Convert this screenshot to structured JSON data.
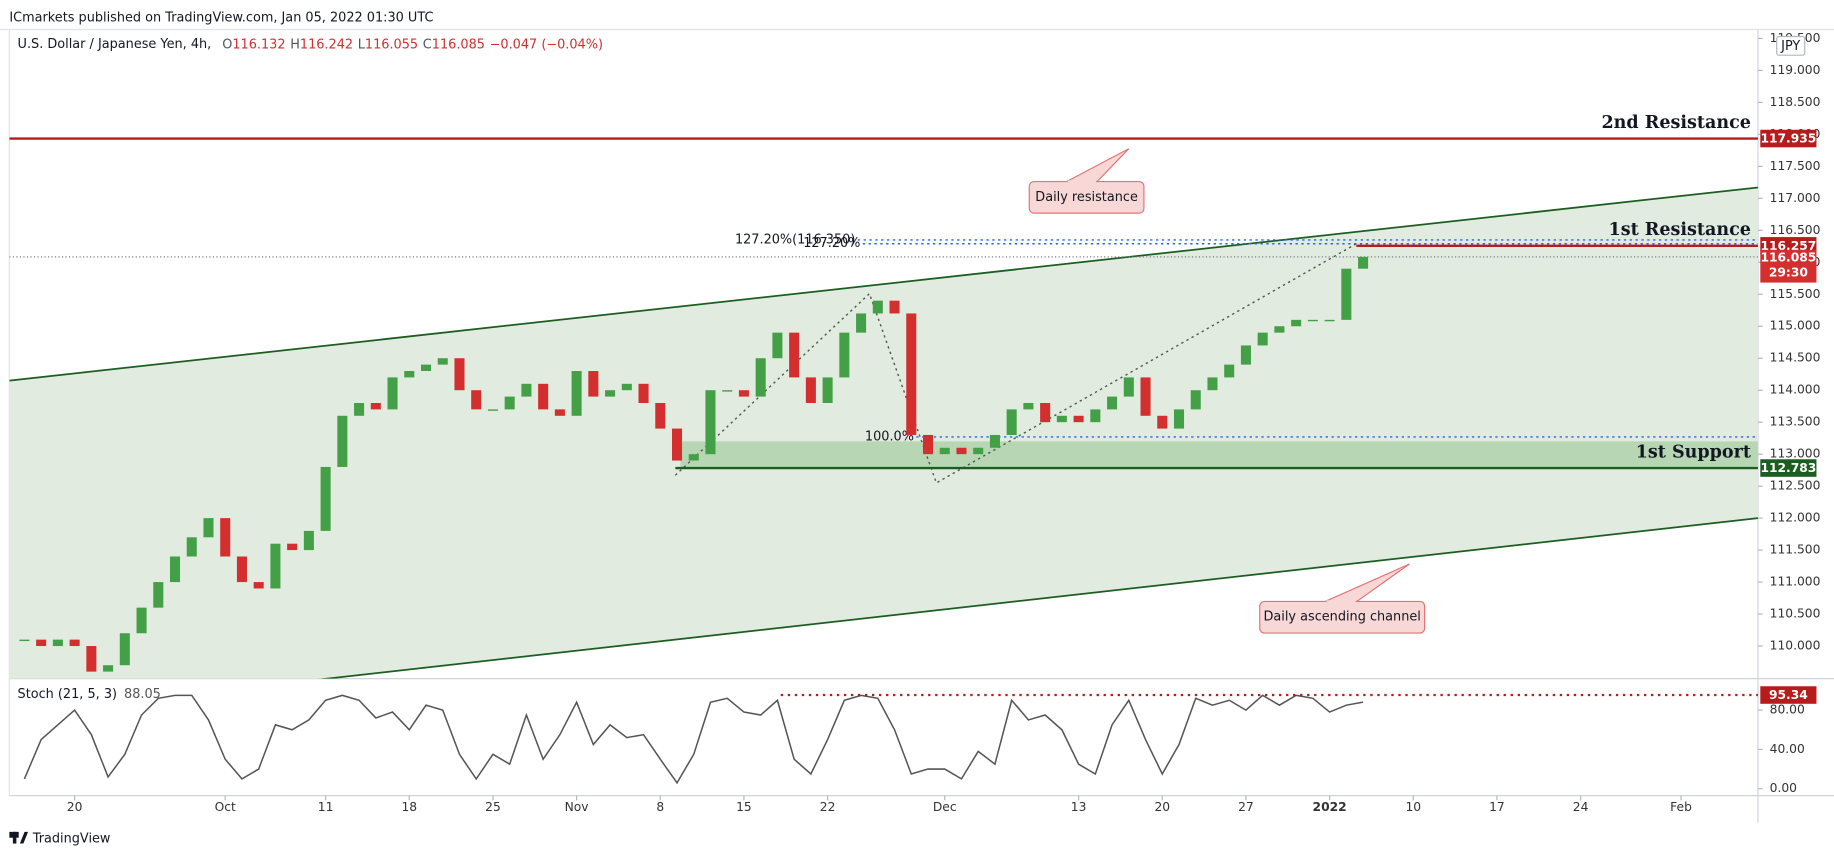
{
  "header": {
    "published": "ICmarkets published on TradingView.com, Jan 05, 2022 01:30 UTC"
  },
  "footer": {
    "brand": "TradingView"
  },
  "currency": "JPY",
  "annotations": [
    "Daily resistance",
    "Daily ascending channel"
  ],
  "chart_data": [
    {
      "type": "candlestick",
      "title": "U.S. Dollar / Japanese Yen, 4h,",
      "legend": {
        "labels": [
          "O",
          "H",
          "L",
          "C"
        ],
        "open": 116.132,
        "high": 116.242,
        "low": 116.055,
        "change": "−0.047 (−0.04%)"
      },
      "x": [
        -3,
        -2,
        -1,
        0,
        1,
        2,
        3,
        4,
        5,
        6,
        7,
        8,
        9,
        10,
        11,
        12,
        13,
        14,
        15,
        16,
        17,
        18,
        19,
        20,
        21,
        22,
        23,
        24,
        25,
        26,
        27,
        28,
        29,
        30,
        31,
        32,
        33,
        34,
        35,
        36,
        37,
        38,
        39,
        40,
        41,
        42,
        43,
        44,
        45,
        46,
        47,
        48,
        49,
        50,
        51,
        52,
        53,
        54,
        55,
        56,
        57,
        58,
        59,
        60,
        61,
        62,
        63,
        64,
        65,
        66,
        67,
        68,
        69,
        70,
        71,
        72,
        73,
        74,
        75,
        76,
        77
      ],
      "values": [
        110.1,
        110.0,
        110.1,
        110.0,
        109.6,
        109.7,
        110.2,
        110.6,
        111.0,
        111.4,
        111.7,
        112.0,
        111.4,
        111.0,
        110.9,
        111.6,
        111.5,
        111.8,
        112.8,
        113.6,
        113.8,
        113.7,
        114.2,
        114.3,
        114.4,
        114.5,
        114.0,
        113.7,
        113.7,
        113.9,
        114.1,
        113.7,
        113.6,
        114.3,
        113.9,
        114.0,
        114.1,
        113.8,
        113.4,
        112.9,
        113.0,
        114.0,
        114.0,
        113.9,
        114.5,
        114.9,
        114.2,
        113.8,
        114.2,
        114.9,
        115.2,
        115.4,
        115.2,
        113.3,
        113.0,
        113.1,
        113.0,
        113.1,
        113.3,
        113.7,
        113.8,
        113.5,
        113.6,
        113.5,
        113.7,
        113.9,
        114.2,
        113.6,
        113.4,
        113.7,
        114.0,
        114.2,
        114.4,
        114.7,
        114.9,
        115.0,
        115.1,
        115.1,
        115.1,
        115.9,
        116.085
      ],
      "up_color": "#43a047",
      "down_color": "#d32f2f",
      "xlim": [
        -3.9,
        100.6
      ],
      "ylim": [
        109.49,
        119.64
      ],
      "xticks": [
        {
          "value": 0,
          "label": "20"
        },
        {
          "value": 9,
          "label": "Oct"
        },
        {
          "value": 15,
          "label": "11"
        },
        {
          "value": 20,
          "label": "18"
        },
        {
          "value": 25,
          "label": "25"
        },
        {
          "value": 30,
          "label": "Nov"
        },
        {
          "value": 35,
          "label": "8"
        },
        {
          "value": 40,
          "label": "15"
        },
        {
          "value": 45,
          "label": "22"
        },
        {
          "value": 52,
          "label": "Dec"
        },
        {
          "value": 60,
          "label": "13"
        },
        {
          "value": 65,
          "label": "20"
        },
        {
          "value": 70,
          "label": "27"
        },
        {
          "value": 75,
          "label": "2022"
        },
        {
          "value": 80,
          "label": "10"
        },
        {
          "value": 85,
          "label": "17"
        },
        {
          "value": 90,
          "label": "24"
        },
        {
          "value": 96,
          "label": "Feb"
        }
      ],
      "yticks": [
        {
          "value": 110,
          "label": "110.000"
        },
        {
          "value": 110.5,
          "label": "110.500"
        },
        {
          "value": 111,
          "label": "111.000"
        },
        {
          "value": 111.5,
          "label": "111.500"
        },
        {
          "value": 112,
          "label": "112.000"
        },
        {
          "value": 112.5,
          "label": "112.500"
        },
        {
          "value": 113,
          "label": "113.000"
        },
        {
          "value": 113.5,
          "label": "113.500"
        },
        {
          "value": 114,
          "label": "114.000"
        },
        {
          "value": 114.5,
          "label": "114.500"
        },
        {
          "value": 115,
          "label": "115.000"
        },
        {
          "value": 115.5,
          "label": "115.500"
        },
        {
          "value": 116,
          "label": "116.000"
        },
        {
          "value": 116.5,
          "label": "116.500"
        },
        {
          "value": 117,
          "label": "117.000"
        },
        {
          "value": 117.5,
          "label": "117.500"
        },
        {
          "value": 118,
          "label": "118.000"
        },
        {
          "value": 118.5,
          "label": "118.500"
        },
        {
          "value": 119,
          "label": "119.000"
        },
        {
          "value": 119.5,
          "label": "119.500"
        }
      ],
      "channel": {
        "upper": {
          "x": [
            -3.9,
            100.6
          ],
          "y": [
            114.15,
            117.17
          ]
        },
        "lower": {
          "x": [
            15.1,
            100.6
          ],
          "y": [
            109.49,
            112.0
          ]
        },
        "color": "#1b5e20",
        "fill": "#e1ebdf"
      },
      "zone": {
        "x_start": 36.2,
        "top": 113.2,
        "color": "#b7d7b4"
      },
      "levels": [
        {
          "name": "2nd Resistance",
          "value": 117.935,
          "color": "#b71c1c"
        },
        {
          "name": "1st Resistance",
          "value": 116.257,
          "x_start": 76.6,
          "color": "#b71c1c"
        },
        {
          "name": "1st Support",
          "value": 112.783,
          "x_start": 35.9,
          "color": "#1b5e20"
        }
      ],
      "fib_color": "#2962ff",
      "fib_levels": [
        {
          "value": 116.35,
          "label": "127.20%(116.350)",
          "x_start": 46.8
        },
        {
          "value": 116.29,
          "label": "127.20%",
          "x_start": 47.1
        },
        {
          "value": 113.27,
          "label": "100.0%",
          "x_start": 50.3
        }
      ],
      "fib_path": {
        "x": [
          35.9,
          47.5,
          51.5,
          76.6
        ],
        "y": [
          112.67,
          115.51,
          112.55,
          116.29
        ],
        "color": "#555555"
      },
      "current": {
        "countdown": "29:30",
        "color": "#d32f2f"
      }
    },
    {
      "type": "line",
      "title": "Stoch (21, 5, 3)",
      "color": "#555555",
      "values": [
        10,
        50,
        65,
        80,
        55,
        12,
        35,
        75,
        92,
        95,
        95,
        70,
        30,
        10,
        20,
        65,
        60,
        70,
        90,
        95,
        90,
        72,
        78,
        60,
        85,
        80,
        35,
        10,
        35,
        25,
        75,
        30,
        55,
        88,
        45,
        65,
        52,
        55,
        30,
        6,
        35,
        88,
        92,
        78,
        75,
        90,
        30,
        15,
        50,
        90,
        95,
        92,
        60,
        15,
        20,
        20,
        10,
        38,
        25,
        90,
        70,
        75,
        60,
        25,
        15,
        65,
        90,
        50,
        15,
        45,
        92,
        85,
        90,
        80,
        95,
        85,
        95,
        92,
        78,
        85,
        88.05
      ],
      "ylim": [
        -7,
        112
      ],
      "yticks": [
        {
          "value": 0,
          "label": "0.00"
        },
        {
          "value": 40,
          "label": "40.00"
        },
        {
          "value": 80,
          "label": "80.00"
        }
      ],
      "level": {
        "value": 95.34,
        "x_start": 42.2,
        "color": "#b71c1c"
      }
    }
  ]
}
